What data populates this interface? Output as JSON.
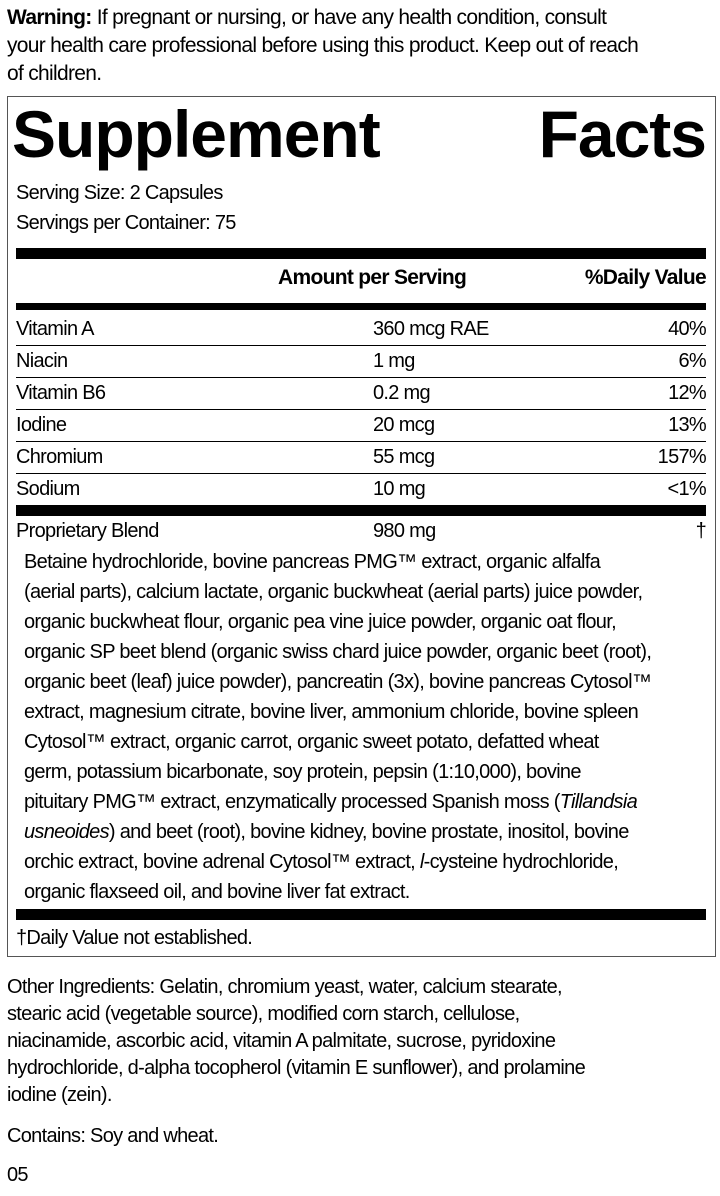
{
  "warning": {
    "label": "Warning:",
    "lines": [
      " If pregnant or nursing, or have any health condition, consult",
      "your health care professional before using this product. Keep out of reach",
      "of children."
    ]
  },
  "facts": {
    "title_word1": "Supplement",
    "title_word2": "Facts",
    "serving_size": "Serving Size: 2 Capsules",
    "servings_per_container": "Servings per Container: 75",
    "col_amount": "Amount per Serving",
    "col_dv": "%Daily Value",
    "rows": [
      {
        "name": "Vitamin A",
        "amount": "360 mcg RAE",
        "dv": "40%"
      },
      {
        "name": "Niacin",
        "amount": "1 mg",
        "dv": "6%"
      },
      {
        "name": "Vitamin B6",
        "amount": "0.2 mg",
        "dv": "12%"
      },
      {
        "name": "Iodine",
        "amount": "20 mcg",
        "dv": "13%"
      },
      {
        "name": "Chromium",
        "amount": "55 mcg",
        "dv": "157%"
      },
      {
        "name": "Sodium",
        "amount": "10 mg",
        "dv": "<1%"
      }
    ],
    "blend": {
      "name": "Proprietary Blend",
      "amount": "980 mg",
      "dv": "†"
    },
    "blend_ingredients": [
      [
        {
          "t": "Betaine hydrochloride, bovine pancreas PMG™ extract, organic alfalfa"
        }
      ],
      [
        {
          "t": "(aerial parts), calcium lactate, organic buckwheat (aerial parts) juice powder,"
        }
      ],
      [
        {
          "t": "organic buckwheat flour, organic pea vine juice powder, organic oat flour,"
        }
      ],
      [
        {
          "t": "organic SP beet blend (organic swiss chard juice powder, organic beet (root),"
        }
      ],
      [
        {
          "t": "organic beet (leaf) juice powder), pancreatin (3x), bovine pancreas Cytosol™"
        }
      ],
      [
        {
          "t": "extract, magnesium citrate, bovine liver, ammonium chloride, bovine spleen"
        }
      ],
      [
        {
          "t": "Cytosol™ extract, organic carrot, organic sweet potato, defatted wheat"
        }
      ],
      [
        {
          "t": "germ, potassium bicarbonate, soy protein, pepsin (1:10,000), bovine"
        }
      ],
      [
        {
          "t": "pituitary PMG™ extract, enzymatically processed Spanish moss ("
        },
        {
          "t": "Tillandsia",
          "i": true
        }
      ],
      [
        {
          "t": "usneoides",
          "i": true
        },
        {
          "t": ") and beet (root), bovine kidney, bovine prostate, inositol, bovine"
        }
      ],
      [
        {
          "t": "orchic extract, bovine adrenal Cytosol™ extract, "
        },
        {
          "t": "l",
          "i": true
        },
        {
          "t": "-cysteine hydrochloride,"
        }
      ],
      [
        {
          "t": "organic flaxseed oil, and bovine liver fat extract."
        }
      ]
    ],
    "footnote": "†Daily Value not established."
  },
  "other_ingredients": [
    "Other Ingredients: Gelatin, chromium yeast, water, calcium stearate,",
    "stearic acid (vegetable source), modified corn starch, cellulose,",
    "niacinamide, ascorbic acid, vitamin A palmitate, sucrose, pyridoxine",
    "hydrochloride, d-alpha tocopherol (vitamin E sunflower), and prolamine",
    "iodine (zein)."
  ],
  "contains": "Contains: Soy and wheat.",
  "code": "05"
}
